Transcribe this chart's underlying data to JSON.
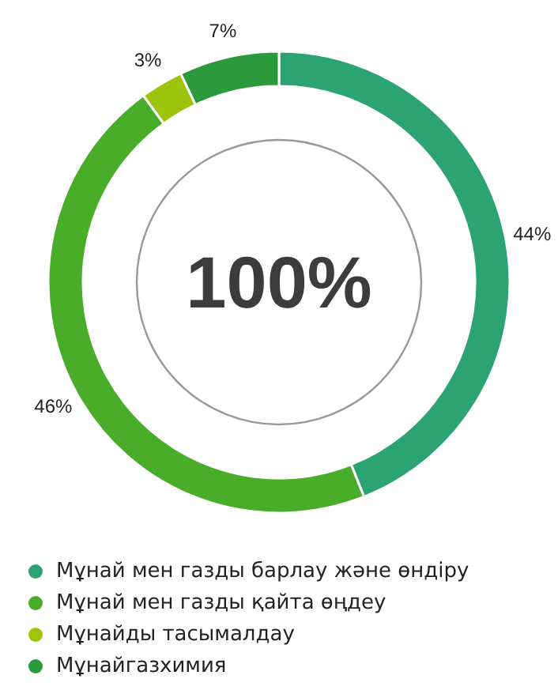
{
  "chart_data": {
    "type": "donut",
    "categories": [
      "Мұнай мен газды барлау және өндіру",
      "Мұнай мен газды қайта өңдеу",
      "Мұнайды тасымалдау",
      "Мұнайгазхимия"
    ],
    "values": [
      44,
      46,
      3,
      7
    ],
    "colors": [
      "#2ca373",
      "#4aad2a",
      "#9dc40a",
      "#2a9a3c"
    ],
    "value_labels": [
      "44%",
      "46%",
      "3%",
      "7%"
    ],
    "annotations": [
      "100%"
    ],
    "legend": "bottom"
  }
}
